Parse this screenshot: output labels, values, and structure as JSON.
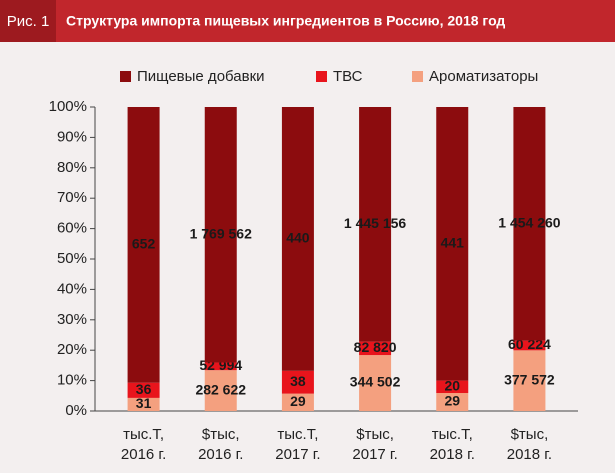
{
  "figure_label": "Рис. 1",
  "chart_data": {
    "type": "bar",
    "stacking": "percent",
    "title": "Структура импорта пищевых ингредиентов в Россию, 2018 год",
    "categories": [
      [
        "тыс.Т,",
        "2016 г."
      ],
      [
        "$тыс,",
        "2016 г."
      ],
      [
        "тыс.Т,",
        "2017 г."
      ],
      [
        "$тыс,",
        "2017 г."
      ],
      [
        "тыс.Т,",
        "2018 г."
      ],
      [
        "$тыс,",
        "2018 г."
      ]
    ],
    "series": [
      {
        "name": "Ароматизаторы",
        "color": "#f4a07f",
        "values": [
          31,
          282622,
          29,
          344502,
          29,
          377572
        ],
        "value_labels": [
          "31",
          "282 622",
          "29",
          "344 502",
          "29",
          "377 572"
        ]
      },
      {
        "name": "ТВС",
        "color": "#e8141c",
        "values": [
          36,
          52994,
          38,
          82820,
          20,
          60224
        ],
        "value_labels": [
          "36",
          "52 994",
          "38",
          "82 820",
          "20",
          "60 224"
        ]
      },
      {
        "name": "Пищевые добавки",
        "color": "#8c0c0e",
        "values": [
          652,
          1769562,
          440,
          1445156,
          441,
          1454260
        ],
        "value_labels": [
          "652",
          "1 769 562",
          "440",
          "1 445 156",
          "441",
          "1 454 260"
        ]
      }
    ],
    "legend_order": [
      2,
      1,
      0
    ],
    "ylim": [
      0,
      100
    ],
    "yticks": [
      {
        "value": 0,
        "label": "0%"
      },
      {
        "value": 10,
        "label": "10%"
      },
      {
        "value": 20,
        "label": "20%"
      },
      {
        "value": 30,
        "label": "30%"
      },
      {
        "value": 40,
        "label": "40%"
      },
      {
        "value": 50,
        "label": "50%"
      },
      {
        "value": 60,
        "label": "60%"
      },
      {
        "value": 70,
        "label": "70%"
      },
      {
        "value": 80,
        "label": "80%"
      },
      {
        "value": 90,
        "label": "90%"
      },
      {
        "value": 100,
        "label": "100%"
      }
    ],
    "grid": false
  }
}
